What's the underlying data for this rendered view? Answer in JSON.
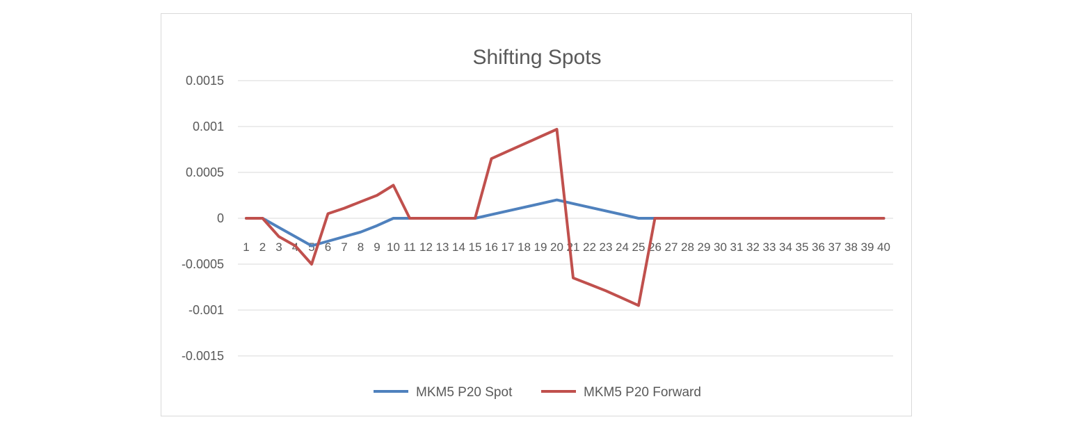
{
  "chart_data": {
    "type": "line",
    "title": "Shifting Spots",
    "xlabel": "",
    "ylabel": "",
    "categories": [
      "1",
      "2",
      "3",
      "4",
      "5",
      "6",
      "7",
      "8",
      "9",
      "10",
      "11",
      "12",
      "13",
      "14",
      "15",
      "16",
      "17",
      "18",
      "19",
      "20",
      "21",
      "22",
      "23",
      "24",
      "25",
      "26",
      "27",
      "28",
      "29",
      "30",
      "31",
      "32",
      "33",
      "34",
      "35",
      "36",
      "37",
      "38",
      "39",
      "40"
    ],
    "y_tick_labels": [
      "0.0015",
      "0.001",
      "0.0005",
      "0",
      "-0.0005",
      "-0.001",
      "-0.0015"
    ],
    "ylim": [
      -0.0015,
      0.0015
    ],
    "grid": true,
    "legend_position": "bottom",
    "series": [
      {
        "name": "MKM5 P20 Spot",
        "color": "#4f81bd",
        "values": [
          0,
          0,
          -0.0001,
          -0.0002,
          -0.0003,
          -0.00025,
          -0.0002,
          -0.00015,
          -8e-05,
          0,
          0,
          0,
          0,
          0,
          0,
          4e-05,
          8e-05,
          0.00012,
          0.00016,
          0.0002,
          0.00016,
          0.00012,
          8e-05,
          4e-05,
          0,
          0,
          0,
          0,
          0,
          0,
          0,
          0,
          0,
          0,
          0,
          0,
          0,
          0,
          0,
          0
        ]
      },
      {
        "name": "MKM5 P20 Forward",
        "color": "#c0504d",
        "values": [
          0,
          0,
          -0.0002,
          -0.0003,
          -0.0005,
          5e-05,
          0.00011,
          0.00018,
          0.00025,
          0.00036,
          0,
          0,
          0,
          0,
          0,
          0.00065,
          0.00073,
          0.00081,
          0.00089,
          0.00097,
          -0.00065,
          -0.00072,
          -0.00079,
          -0.00087,
          -0.00095,
          0,
          0,
          0,
          0,
          0,
          0,
          0,
          0,
          0,
          0,
          0,
          0,
          0,
          0,
          0
        ]
      }
    ]
  }
}
